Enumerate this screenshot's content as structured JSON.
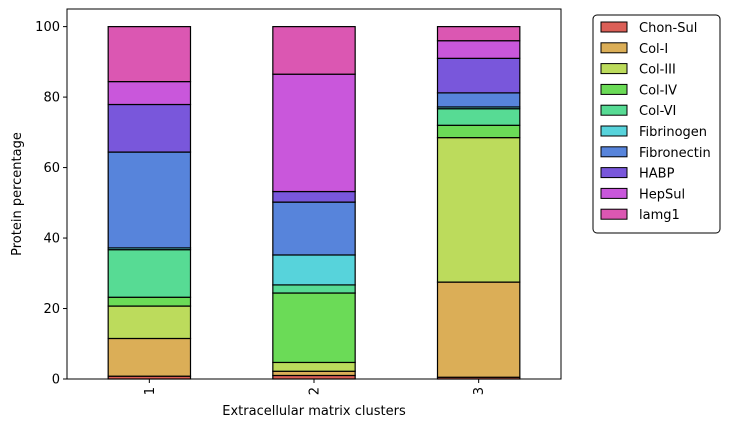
{
  "chart_data": {
    "type": "bar",
    "stacked": true,
    "categories": [
      "1",
      "2",
      "3"
    ],
    "xlabel": "Extracellular matrix clusters",
    "ylabel": "Protein percentage",
    "ylim": [
      0,
      105
    ],
    "yticks": [
      0,
      20,
      40,
      60,
      80,
      100
    ],
    "grid": false,
    "legend_position": "outside-top-right",
    "series": [
      {
        "name": "Chon-Sul",
        "color": "#db5f57",
        "values": [
          0.8,
          1.0,
          0.5
        ]
      },
      {
        "name": "Col-I",
        "color": "#dbae57",
        "values": [
          10.7,
          1.2,
          27.0
        ]
      },
      {
        "name": "Col-III",
        "color": "#bcdb5c",
        "values": [
          9.2,
          2.5,
          41.0
        ]
      },
      {
        "name": "Col-IV",
        "color": "#6bdb57",
        "values": [
          2.5,
          19.7,
          3.5
        ]
      },
      {
        "name": "Col-VI",
        "color": "#57db94",
        "values": [
          13.5,
          2.3,
          4.7
        ]
      },
      {
        "name": "Fibrinogen",
        "color": "#57d3db",
        "values": [
          0.5,
          8.5,
          0.5
        ]
      },
      {
        "name": "Fibronectin",
        "color": "#5784db",
        "values": [
          27.2,
          15.0,
          4.0
        ]
      },
      {
        "name": "HABP",
        "color": "#7957db",
        "values": [
          13.5,
          3.0,
          9.8
        ]
      },
      {
        "name": "HepSul",
        "color": "#c957db",
        "values": [
          6.5,
          33.3,
          5.0
        ]
      },
      {
        "name": "lamg1",
        "color": "#db57b2",
        "values": [
          15.6,
          13.5,
          4.0
        ]
      }
    ]
  }
}
